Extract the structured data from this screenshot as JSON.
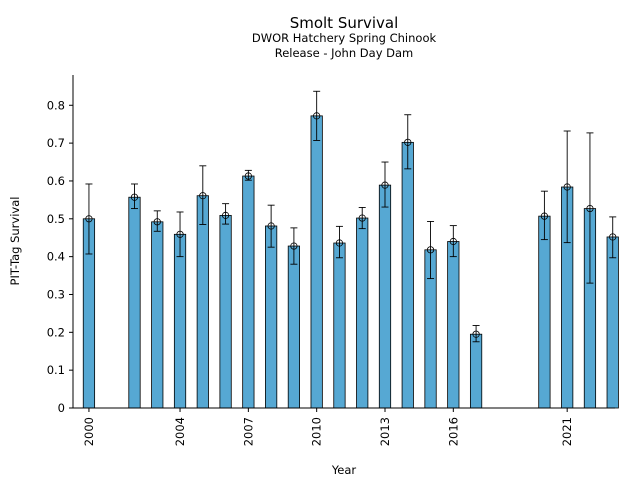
{
  "chart_data": {
    "type": "bar",
    "title": "Smolt Survival",
    "subtitle": [
      "DWOR Hatchery Spring Chinook",
      "Release - John Day Dam"
    ],
    "xlabel": "Year",
    "ylabel": "PIT-Tag Survival",
    "ylim": [
      0,
      0.88
    ],
    "xlim": [
      1999.3,
      2023.1
    ],
    "yticks": [
      "0",
      "0.1",
      "0.2",
      "0.3",
      "0.4",
      "0.5",
      "0.6",
      "0.7",
      "0.8"
    ],
    "xticks": [
      "2000",
      "2004",
      "2007",
      "2010",
      "2013",
      "2016",
      "2021"
    ],
    "grid": false,
    "bar_color": "#56a8d3",
    "series": [
      {
        "x": [
          2000,
          2002,
          2003,
          2004,
          2005,
          2006,
          2007,
          2008,
          2009,
          2010,
          2011,
          2012,
          2013,
          2014,
          2015,
          2016,
          2017,
          2020,
          2021,
          2022,
          2023
        ],
        "values": [
          0.5,
          0.557,
          0.492,
          0.459,
          0.561,
          0.509,
          0.613,
          0.481,
          0.428,
          0.772,
          0.436,
          0.502,
          0.589,
          0.702,
          0.418,
          0.44,
          0.195,
          0.507,
          0.584,
          0.527,
          0.452
        ],
        "err_low": [
          0.407,
          0.527,
          0.467,
          0.4,
          0.485,
          0.486,
          0.602,
          0.425,
          0.38,
          0.707,
          0.397,
          0.474,
          0.531,
          0.632,
          0.342,
          0.4,
          0.175,
          0.445,
          0.437,
          0.33,
          0.397
        ],
        "err_high": [
          0.592,
          0.592,
          0.521,
          0.518,
          0.64,
          0.54,
          0.628,
          0.536,
          0.476,
          0.837,
          0.48,
          0.53,
          0.65,
          0.775,
          0.493,
          0.482,
          0.218,
          0.573,
          0.732,
          0.727,
          0.505
        ]
      }
    ]
  }
}
